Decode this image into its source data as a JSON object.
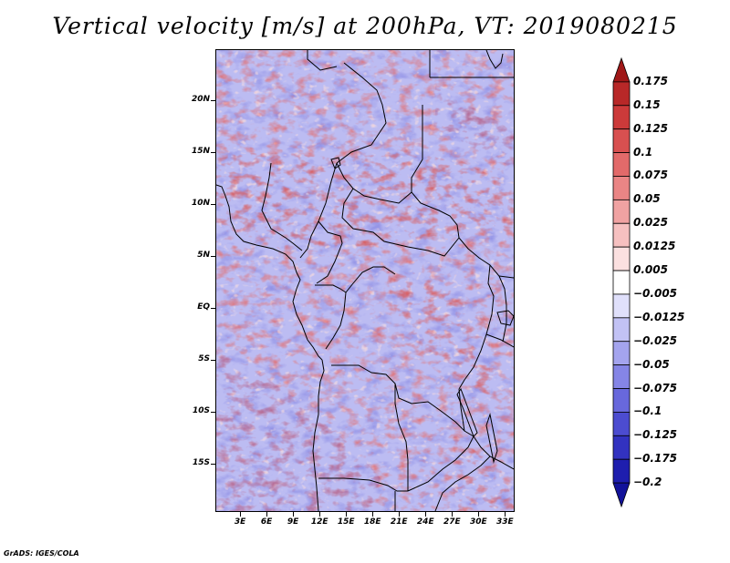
{
  "title": "Vertical velocity [m/s] at 200hPa, VT: 2019080215",
  "map": {
    "lat_labels": [
      "20N",
      "15N",
      "10N",
      "5N",
      "EQ",
      "5S",
      "10S",
      "15S"
    ],
    "lon_labels": [
      "3E",
      "6E",
      "9E",
      "12E",
      "15E",
      "18E",
      "21E",
      "24E",
      "27E",
      "30E",
      "33E"
    ],
    "lat_values": [
      20,
      15,
      10,
      5,
      0,
      -5,
      -10,
      -15
    ],
    "lon_values": [
      3,
      6,
      9,
      12,
      15,
      18,
      21,
      24,
      27,
      30,
      33
    ],
    "lat_range": [
      -19.6,
      24.9
    ],
    "lon_range": [
      0.2,
      34.1
    ]
  },
  "colorbar": {
    "labels": [
      "0.175",
      "0.15",
      "0.125",
      "0.1",
      "0.075",
      "0.05",
      "0.025",
      "0.0125",
      "0.005",
      "−0.005",
      "−0.0125",
      "−0.025",
      "−0.05",
      "−0.075",
      "−0.1",
      "−0.125",
      "−0.175",
      "−0.2"
    ],
    "colors": [
      "#a01818",
      "#b82828",
      "#cc3a3a",
      "#d85050",
      "#e26a6a",
      "#ea8585",
      "#f0a2a2",
      "#f6c0c0",
      "#fbe0e0",
      "#ffffff",
      "#e0e0fb",
      "#c2c2f5",
      "#a4a4ee",
      "#8585e6",
      "#6868dc",
      "#4c4cd0",
      "#3232c0",
      "#1e1eae",
      "#12129a"
    ]
  },
  "footer": "GrADS: IGES/COLA",
  "field_colors": {
    "strong_up": "#c83a3a",
    "up": "#e46c6c",
    "weak_up": "#f3b0b0",
    "neutral": "#ffffff",
    "weak_down": "#bcbcf2",
    "down": "#8c8ce4",
    "strong_down": "#5050cc",
    "boundary": "#000000"
  }
}
